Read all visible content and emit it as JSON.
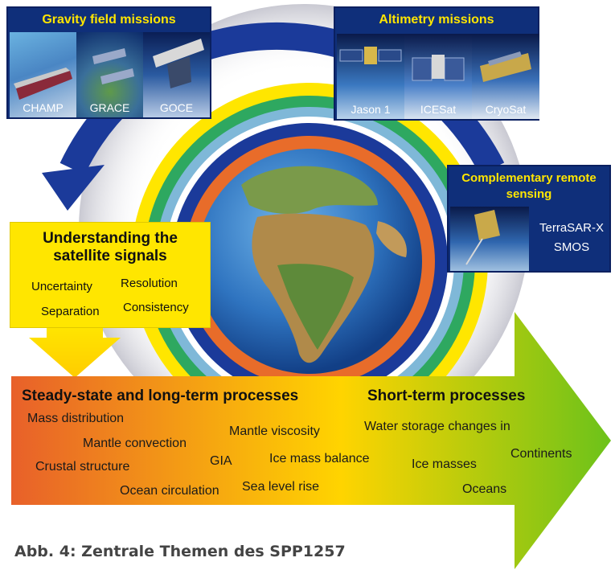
{
  "gravity_panel": {
    "title": "Gravity field missions",
    "satellites": [
      {
        "label": "CHAMP"
      },
      {
        "label": "GRACE"
      },
      {
        "label": "GOCE"
      }
    ]
  },
  "altimetry_panel": {
    "title": "Altimetry missions",
    "satellites": [
      {
        "label": "Jason 1"
      },
      {
        "label": "ICESat"
      },
      {
        "label": "CryoSat"
      }
    ]
  },
  "remote_sensing_panel": {
    "title_line1": "Complementary remote",
    "title_line2": "sensing",
    "missions_line1": "TerraSAR-X",
    "missions_line2": "SMOS"
  },
  "signals_box": {
    "title_line1": "Understanding the",
    "title_line2": "satellite signals",
    "items": [
      "Uncertainty",
      "Resolution",
      "Separation",
      "Consistency"
    ]
  },
  "processes_arrow": {
    "heading_left": "Steady-state and long-term processes",
    "heading_right": "Short-term processes",
    "topics": [
      "Mass distribution",
      "Mantle convection",
      "Crustal structure",
      "Mantle viscosity",
      "GIA",
      "Ice mass balance",
      "Ocean circulation",
      "Sea level rise",
      "Water storage changes in",
      "Continents",
      "Ice masses",
      "Oceans"
    ]
  },
  "caption": "Abb. 4: Zentrale Themen des SPP1257",
  "colors": {
    "panel_blue": "#0f2f7a",
    "title_yellow": "#ffe600",
    "arrow_start": "#e8602a",
    "arrow_mid": "#ffd400",
    "arrow_end": "#6cc21a",
    "ring_blue": "#1b3a9a"
  }
}
